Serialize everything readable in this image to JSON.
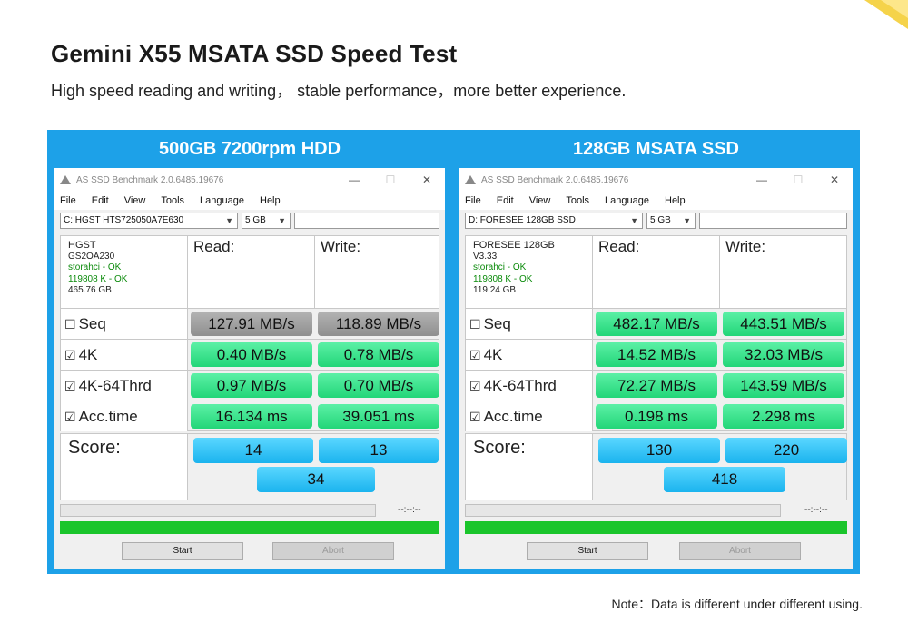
{
  "header": {
    "title": "Gemini X55 MSATA SSD Speed Test",
    "subtitle": "High speed reading and writing， stable performance，more better experience."
  },
  "note": "Note：Data is different under different using.",
  "panels": [
    {
      "banner": "500GB 7200rpm  HDD",
      "app_title": "AS SSD Benchmark 2.0.6485.19676",
      "menu": [
        "File",
        "Edit",
        "View",
        "Tools",
        "Language",
        "Help"
      ],
      "drive_select": "C: HGST HTS725050A7E630",
      "size_select": "5 GB",
      "info": {
        "name": "HGST",
        "line2": "GS2OA230",
        "ok1": "storahci - OK",
        "ok2": "119808 K - OK",
        "capacity": "465.76 GB"
      },
      "read_header": "Read:",
      "write_header": "Write:",
      "tests": [
        {
          "label": "Seq",
          "checked": "☐",
          "read": "127.91 MB/s",
          "write": "118.89 MB/s"
        },
        {
          "label": "4K",
          "checked": "☑",
          "read": "0.40 MB/s",
          "write": "0.78 MB/s"
        },
        {
          "label": "4K-64Thrd",
          "checked": "☑",
          "read": "0.97 MB/s",
          "write": "0.70 MB/s"
        },
        {
          "label": "Acc.time",
          "checked": "☑",
          "read": "16.134 ms",
          "write": "39.051 ms"
        }
      ],
      "score_label": "Score:",
      "score_read": "14",
      "score_write": "13",
      "score_total": "34",
      "timer": "--:--:--",
      "start": "Start",
      "abort": "Abort"
    },
    {
      "banner": "128GB MSATA SSD",
      "app_title": "AS SSD Benchmark 2.0.6485.19676",
      "menu": [
        "File",
        "Edit",
        "View",
        "Tools",
        "Language",
        "Help"
      ],
      "drive_select": "D: FORESEE 128GB SSD",
      "size_select": "5 GB",
      "info": {
        "name": "FORESEE 128GB",
        "line2": "V3.33",
        "ok1": "storahci - OK",
        "ok2": "119808 K - OK",
        "capacity": "119.24 GB"
      },
      "read_header": "Read:",
      "write_header": "Write:",
      "tests": [
        {
          "label": "Seq",
          "checked": "☐",
          "read": "482.17 MB/s",
          "write": "443.51 MB/s"
        },
        {
          "label": "4K",
          "checked": "☑",
          "read": "14.52 MB/s",
          "write": "32.03 MB/s"
        },
        {
          "label": "4K-64Thrd",
          "checked": "☑",
          "read": "72.27 MB/s",
          "write": "143.59 MB/s"
        },
        {
          "label": "Acc.time",
          "checked": "☑",
          "read": "0.198 ms",
          "write": "2.298 ms"
        }
      ],
      "score_label": "Score:",
      "score_read": "130",
      "score_write": "220",
      "score_total": "418",
      "timer": "--:--:--",
      "start": "Start",
      "abort": "Abort"
    }
  ],
  "colors": {
    "banner": "#1da1e8",
    "value_green": "#22d678",
    "value_gray": "#8f8f8f",
    "score_blue": "#1ab3ee",
    "progress_green": "#1ac52b"
  },
  "icons": {
    "app": "triangle-app-icon",
    "checkbox": "checkbox-icon"
  }
}
